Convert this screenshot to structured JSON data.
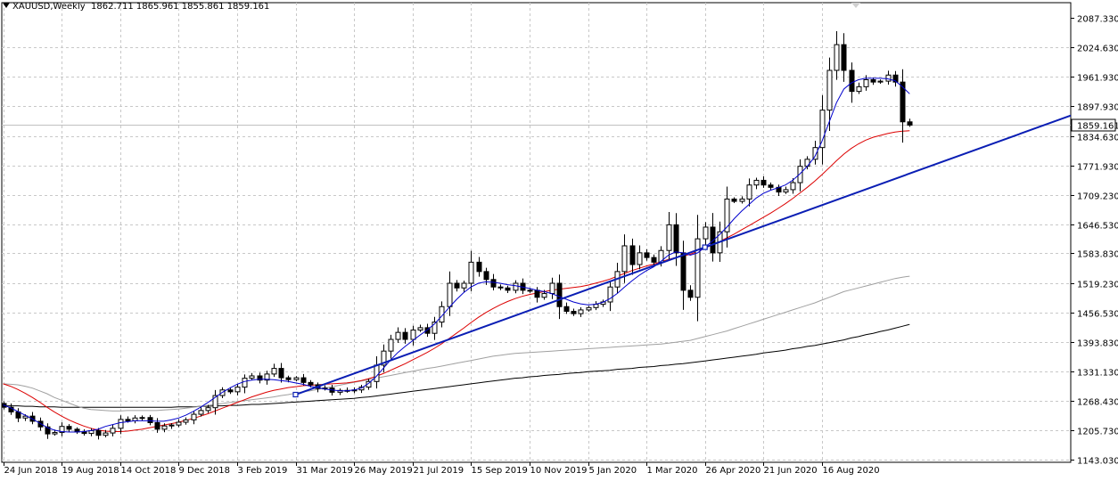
{
  "header": {
    "symbol": "XAUUSD,Weekly",
    "ohlc": "1862.711 1865.961 1855.861 1859.161"
  },
  "chart_data": {
    "type": "candlestick",
    "timeframe": "Weekly",
    "symbol": "XAUUSD",
    "current_price": 1859.161,
    "current_price_label": "1859.161",
    "y_ticks": [
      "2087.330",
      "2024.630",
      "1961.930",
      "1897.930",
      "1834.630",
      "1771.930",
      "1709.230",
      "1646.530",
      "1583.830",
      "1519.230",
      "1456.530",
      "1393.830",
      "1331.130",
      "1268.430",
      "1205.730",
      "1143.030"
    ],
    "x_ticks": [
      "24 Jun 2018",
      "19 Aug 2018",
      "14 Oct 2018",
      "9 Dec 2018",
      "3 Feb 2019",
      "31 Mar 2019",
      "26 May 2019",
      "21 Jul 2019",
      "15 Sep 2019",
      "10 Nov 2019",
      "5 Jan 2020",
      "1 Mar 2020",
      "26 Apr 2020",
      "21 Jun 2020",
      "16 Aug 2020"
    ],
    "y_range": [
      1143.03,
      2087.33
    ],
    "grid": true,
    "candles_close": [
      1255,
      1245,
      1232,
      1236,
      1225,
      1213,
      1198,
      1201,
      1214,
      1208,
      1202,
      1199,
      1205,
      1195,
      1200,
      1210,
      1229,
      1226,
      1232,
      1233,
      1222,
      1208,
      1215,
      1217,
      1223,
      1228,
      1240,
      1248,
      1254,
      1280,
      1292,
      1288,
      1298,
      1317,
      1322,
      1313,
      1326,
      1338,
      1318,
      1314,
      1318,
      1308,
      1303,
      1295,
      1296,
      1287,
      1291,
      1290,
      1292,
      1298,
      1310,
      1345,
      1375,
      1400,
      1415,
      1400,
      1420,
      1425,
      1413,
      1437,
      1470,
      1520,
      1510,
      1520,
      1565,
      1545,
      1528,
      1512,
      1510,
      1505,
      1520,
      1505,
      1505,
      1490,
      1498,
      1520,
      1470,
      1460,
      1455,
      1463,
      1468,
      1475,
      1480,
      1512,
      1545,
      1600,
      1560,
      1585,
      1575,
      1565,
      1590,
      1645,
      1585,
      1505,
      1490,
      1615,
      1640,
      1585,
      1630,
      1700,
      1695,
      1700,
      1730,
      1740,
      1730,
      1725,
      1715,
      1720,
      1735,
      1770,
      1785,
      1810,
      1890,
      1975,
      2030,
      1975,
      1930,
      1940,
      1955,
      1950,
      1952,
      1965,
      1950,
      1865,
      1859
    ],
    "ema_fast": [
      1260,
      1254,
      1246,
      1238,
      1230,
      1221,
      1212,
      1206,
      1203,
      1202,
      1202,
      1203,
      1205,
      1208,
      1214,
      1218,
      1222,
      1224,
      1226,
      1226,
      1226,
      1225,
      1225,
      1228,
      1232,
      1238,
      1246,
      1255,
      1265,
      1276,
      1287,
      1296,
      1304,
      1310,
      1313,
      1315,
      1315,
      1314,
      1312,
      1310,
      1307,
      1304,
      1300,
      1297,
      1294,
      1292,
      1290,
      1290,
      1292,
      1296,
      1306,
      1320,
      1338,
      1356,
      1372,
      1385,
      1397,
      1409,
      1420,
      1433,
      1450,
      1468,
      1485,
      1500,
      1512,
      1520,
      1523,
      1522,
      1520,
      1517,
      1515,
      1512,
      1509,
      1505,
      1502,
      1498,
      1492,
      1486,
      1480,
      1476,
      1474,
      1475,
      1479,
      1487,
      1498,
      1512,
      1525,
      1537,
      1547,
      1555,
      1567,
      1580,
      1587,
      1585,
      1580,
      1585,
      1597,
      1610,
      1624,
      1640,
      1658,
      1674,
      1688,
      1702,
      1712,
      1719,
      1724,
      1730,
      1740,
      1754,
      1770,
      1790,
      1823,
      1865,
      1906,
      1935,
      1948,
      1955,
      1958,
      1958,
      1958,
      1957,
      1953,
      1940,
      1925
    ],
    "ema_slow": [
      1305,
      1300,
      1293,
      1285,
      1276,
      1266,
      1255,
      1245,
      1236,
      1228,
      1221,
      1215,
      1210,
      1206,
      1204,
      1203,
      1203,
      1204,
      1206,
      1208,
      1211,
      1214,
      1217,
      1220,
      1223,
      1227,
      1231,
      1236,
      1241,
      1247,
      1253,
      1259,
      1265,
      1271,
      1277,
      1282,
      1287,
      1291,
      1294,
      1297,
      1299,
      1301,
      1302,
      1303,
      1304,
      1305,
      1306,
      1307,
      1309,
      1312,
      1316,
      1321,
      1327,
      1334,
      1341,
      1348,
      1356,
      1364,
      1372,
      1381,
      1391,
      1402,
      1413,
      1424,
      1436,
      1447,
      1457,
      1466,
      1474,
      1481,
      1487,
      1492,
      1496,
      1499,
      1502,
      1505,
      1507,
      1509,
      1511,
      1513,
      1516,
      1520,
      1524,
      1529,
      1535,
      1541,
      1547,
      1552,
      1557,
      1561,
      1566,
      1571,
      1575,
      1578,
      1582,
      1588,
      1595,
      1602,
      1609,
      1617,
      1625,
      1634,
      1643,
      1652,
      1661,
      1670,
      1680,
      1690,
      1701,
      1713,
      1725,
      1738,
      1752,
      1767,
      1782,
      1796,
      1808,
      1818,
      1826,
      1832,
      1836,
      1840,
      1843,
      1845,
      1846
    ],
    "sma_gray": [
      1305,
      1304,
      1303,
      1300,
      1296,
      1290,
      1284,
      1276,
      1270,
      1264,
      1258,
      1253,
      1250,
      1249,
      1248,
      1247,
      1247,
      1248,
      1248,
      1248,
      1248,
      1248,
      1249,
      1250,
      1251,
      1253,
      1255,
      1257,
      1259,
      1261,
      1263,
      1265,
      1267,
      1269,
      1271,
      1273,
      1275,
      1277,
      1280,
      1282,
      1285,
      1288,
      1290,
      1293,
      1296,
      1299,
      1302,
      1305,
      1308,
      1311,
      1314,
      1317,
      1320,
      1323,
      1326,
      1329,
      1332,
      1335,
      1338,
      1340,
      1343,
      1346,
      1349,
      1352,
      1355,
      1358,
      1361,
      1364,
      1366,
      1368,
      1370,
      1371,
      1372,
      1373,
      1374,
      1375,
      1376,
      1377,
      1378,
      1379,
      1380,
      1381,
      1382,
      1383,
      1384,
      1385,
      1386,
      1387,
      1388,
      1389,
      1390,
      1392,
      1394,
      1396,
      1398,
      1402,
      1406,
      1410,
      1414,
      1418,
      1423,
      1428,
      1433,
      1438,
      1443,
      1448,
      1453,
      1458,
      1463,
      1468,
      1473,
      1478,
      1484,
      1490,
      1496,
      1502,
      1506,
      1510,
      1514,
      1518,
      1522,
      1526,
      1530,
      1533,
      1535
    ],
    "sma_black": [
      1258,
      1258,
      1258,
      1257,
      1257,
      1256,
      1256,
      1256,
      1255,
      1255,
      1255,
      1255,
      1255,
      1255,
      1255,
      1255,
      1255,
      1255,
      1255,
      1255,
      1255,
      1255,
      1255,
      1255,
      1256,
      1256,
      1256,
      1257,
      1257,
      1258,
      1258,
      1259,
      1259,
      1260,
      1261,
      1261,
      1262,
      1263,
      1264,
      1265,
      1266,
      1267,
      1268,
      1269,
      1270,
      1271,
      1272,
      1273,
      1274,
      1276,
      1277,
      1279,
      1281,
      1283,
      1285,
      1287,
      1289,
      1291,
      1293,
      1295,
      1297,
      1299,
      1301,
      1303,
      1305,
      1307,
      1309,
      1311,
      1313,
      1315,
      1317,
      1318,
      1320,
      1321,
      1323,
      1324,
      1325,
      1327,
      1328,
      1329,
      1331,
      1332,
      1333,
      1334,
      1336,
      1337,
      1338,
      1340,
      1341,
      1342,
      1344,
      1345,
      1347,
      1348,
      1350,
      1352,
      1354,
      1356,
      1358,
      1360,
      1362,
      1364,
      1366,
      1368,
      1371,
      1373,
      1375,
      1377,
      1380,
      1382,
      1385,
      1387,
      1390,
      1393,
      1396,
      1399,
      1403,
      1406,
      1410,
      1413,
      1417,
      1420,
      1424,
      1428,
      1432
    ],
    "trendline": {
      "from": {
        "x": "31 Mar 2019",
        "y": 1282
      },
      "to": {
        "x": "26 Apr 2020",
        "y": 1597
      }
    },
    "colors": {
      "bull_candle": "#ffffff",
      "bear_candle": "#000000",
      "ema_fast": "#0000cd",
      "ema_slow": "#dc0000",
      "sma_gray": "#a0a0a0",
      "sma_black": "#000000",
      "trendline": "#0a1eb4",
      "grid": "#c8c8c8"
    }
  }
}
